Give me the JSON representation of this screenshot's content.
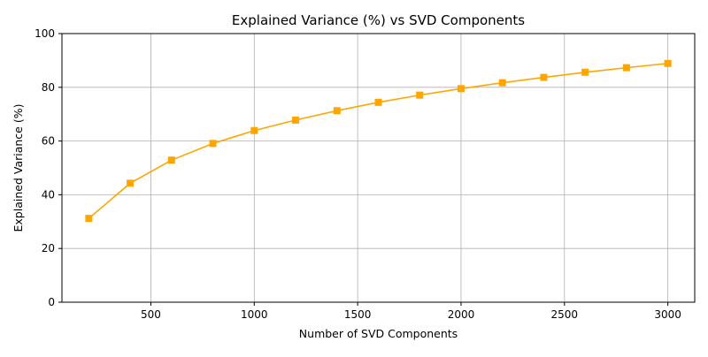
{
  "chart_data": {
    "type": "line",
    "title": "Explained Variance (%) vs SVD Components",
    "xlabel": "Number of SVD Components",
    "ylabel": "Explained Variance (%)",
    "xlim": [
      70,
      3130
    ],
    "ylim": [
      0,
      100
    ],
    "xticks": [
      500,
      1000,
      1500,
      2000,
      2500,
      3000
    ],
    "yticks": [
      0,
      20,
      40,
      60,
      80,
      100
    ],
    "grid": true,
    "marker": "square",
    "series": [
      {
        "color": "#ffa500",
        "x": [
          200,
          400,
          600,
          800,
          1000,
          1200,
          1400,
          1600,
          1800,
          2000,
          2200,
          2400,
          2600,
          2800,
          3000
        ],
        "y": [
          31.2,
          44.3,
          52.9,
          59.1,
          63.9,
          67.8,
          71.3,
          74.4,
          77.1,
          79.5,
          81.7,
          83.7,
          85.6,
          87.3,
          88.9
        ]
      }
    ]
  }
}
